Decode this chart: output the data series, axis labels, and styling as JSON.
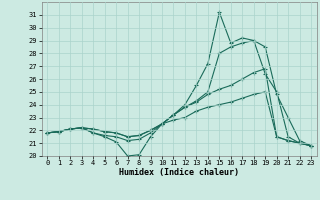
{
  "xlabel": "Humidex (Indice chaleur)",
  "bg_color": "#cceae2",
  "grid_color": "#aad4cc",
  "line_color": "#1a6b5a",
  "xlim": [
    -0.5,
    23.5
  ],
  "ylim": [
    20.0,
    32.0
  ],
  "ytick_vals": [
    20,
    21,
    22,
    23,
    24,
    25,
    26,
    27,
    28,
    29,
    30,
    31
  ],
  "xtick_vals": [
    0,
    1,
    2,
    3,
    4,
    5,
    6,
    7,
    8,
    9,
    10,
    11,
    12,
    13,
    14,
    15,
    16,
    17,
    18,
    19,
    20,
    21,
    22,
    23
  ],
  "series": [
    {
      "x": [
        0,
        1,
        2,
        3,
        4,
        5,
        6,
        7,
        8,
        9,
        10,
        11,
        12,
        13,
        14,
        15,
        16,
        17,
        18,
        19,
        20,
        21,
        22,
        23
      ],
      "y": [
        21.8,
        21.9,
        22.1,
        22.2,
        21.8,
        21.5,
        21.1,
        20.0,
        20.1,
        21.5,
        22.5,
        23.2,
        24.0,
        25.5,
        27.2,
        31.2,
        28.8,
        29.2,
        29.0,
        26.4,
        25.0,
        21.5,
        21.0,
        20.8
      ]
    },
    {
      "x": [
        0,
        1,
        2,
        3,
        4,
        5,
        6,
        7,
        8,
        9,
        10,
        11,
        12,
        13,
        14,
        15,
        16,
        17,
        18,
        19,
        20,
        21,
        22,
        23
      ],
      "y": [
        21.8,
        21.9,
        22.1,
        22.2,
        21.8,
        21.6,
        21.5,
        21.2,
        21.3,
        21.8,
        22.5,
        23.2,
        23.8,
        24.3,
        25.0,
        28.0,
        28.5,
        28.8,
        29.0,
        28.5,
        24.8,
        23.0,
        21.2,
        20.8
      ]
    },
    {
      "x": [
        0,
        1,
        2,
        3,
        4,
        5,
        6,
        7,
        8,
        9,
        10,
        11,
        12,
        13,
        14,
        15,
        16,
        17,
        18,
        19,
        20,
        21,
        22,
        23
      ],
      "y": [
        21.8,
        21.9,
        22.1,
        22.2,
        22.1,
        21.9,
        21.8,
        21.5,
        21.6,
        22.0,
        22.5,
        23.2,
        23.8,
        24.2,
        24.8,
        25.2,
        25.5,
        26.0,
        26.5,
        26.8,
        21.5,
        21.2,
        21.0,
        20.8
      ]
    },
    {
      "x": [
        0,
        1,
        2,
        3,
        4,
        5,
        6,
        7,
        8,
        9,
        10,
        11,
        12,
        13,
        14,
        15,
        16,
        17,
        18,
        19,
        20,
        21,
        22,
        23
      ],
      "y": [
        21.8,
        21.9,
        22.1,
        22.2,
        22.1,
        21.9,
        21.8,
        21.5,
        21.6,
        22.0,
        22.5,
        22.8,
        23.0,
        23.5,
        23.8,
        24.0,
        24.2,
        24.5,
        24.8,
        25.0,
        21.5,
        21.2,
        21.0,
        20.8
      ]
    }
  ]
}
